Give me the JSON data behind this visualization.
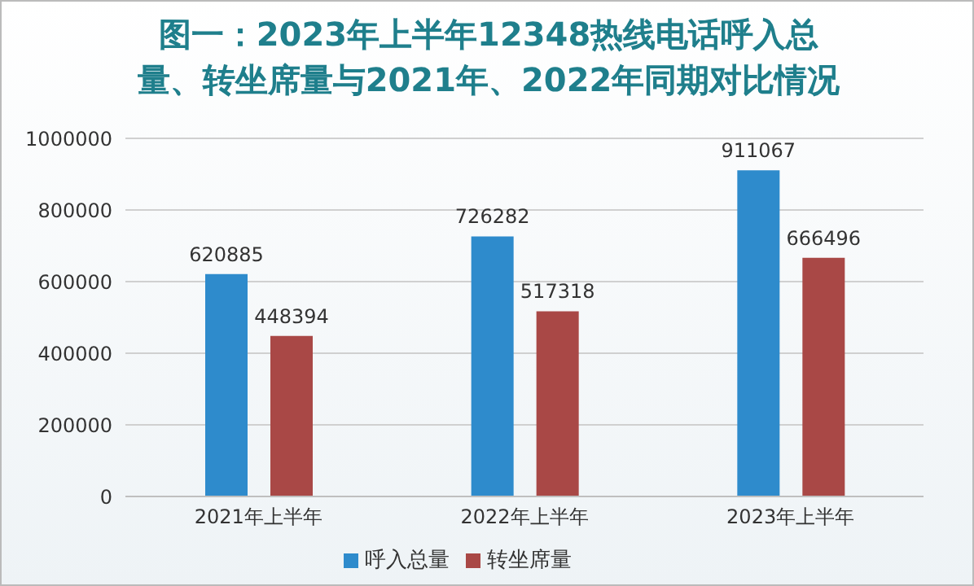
{
  "chart_data": {
    "type": "bar",
    "title": "图一：2023年上半年12348热线电话呼入总量、转坐席量与2021年、2022年同期对比情况",
    "categories": [
      "2021年上半年",
      "2022年上半年",
      "2023年上半年"
    ],
    "series": [
      {
        "name": "呼入总量",
        "color": "#2e8bcc",
        "values": [
          620885,
          726282,
          911067
        ]
      },
      {
        "name": "转坐席量",
        "color": "#a94846",
        "values": [
          448394,
          517318,
          666496
        ]
      }
    ],
    "ylim": [
      0,
      1000000
    ],
    "yticks": [
      0,
      200000,
      400000,
      600000,
      800000,
      1000000
    ],
    "grid": "y",
    "legend": "bottom",
    "data_labels": true
  }
}
